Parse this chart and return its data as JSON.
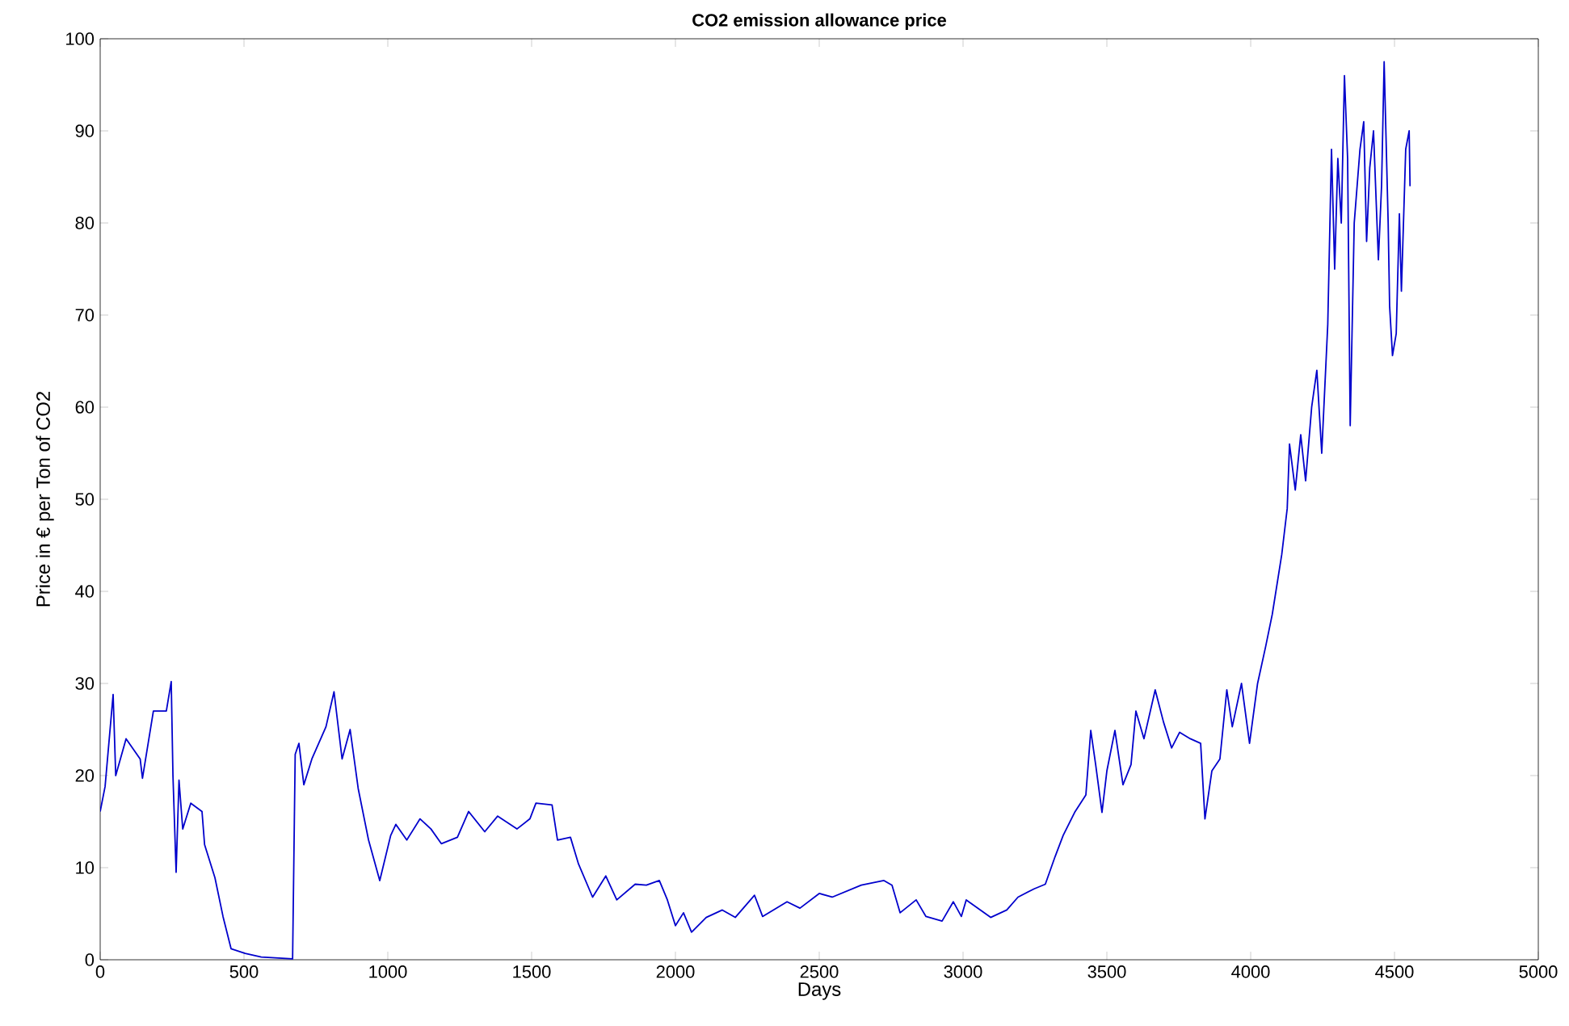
{
  "chart_data": {
    "type": "line",
    "title": "CO2 emission allowance price",
    "xlabel": "Days",
    "ylabel": "Price in € per Ton of CO2",
    "xlim": [
      0,
      5000
    ],
    "ylim": [
      0,
      100
    ],
    "xticks": [
      0,
      500,
      1000,
      1500,
      2000,
      2500,
      3000,
      3500,
      4000,
      4500,
      5000
    ],
    "yticks": [
      0,
      10,
      20,
      30,
      40,
      50,
      60,
      70,
      80,
      90,
      100
    ],
    "grid": false,
    "marker": "none",
    "line_style": "solid",
    "series": [
      {
        "color": "#0000cc",
        "x": [
          0,
          17,
          45,
          54,
          90,
          139,
          147,
          185,
          230,
          247,
          253,
          264,
          274,
          287,
          315,
          354,
          363,
          399,
          427,
          455,
          504,
          560,
          669,
          678,
          691,
          708,
          736,
          785,
          813,
          841,
          869,
          897,
          933,
          972,
          1010,
          1028,
          1066,
          1112,
          1150,
          1186,
          1242,
          1281,
          1337,
          1382,
          1449,
          1494,
          1515,
          1571,
          1590,
          1635,
          1663,
          1712,
          1758,
          1796,
          1860,
          1899,
          1944,
          1972,
          2000,
          2028,
          2056,
          2107,
          2163,
          2208,
          2275,
          2303,
          2388,
          2433,
          2500,
          2545,
          2646,
          2725,
          2753,
          2781,
          2837,
          2871,
          2927,
          2966,
          2994,
          3011,
          3096,
          3152,
          3191,
          3247,
          3286,
          3320,
          3348,
          3388,
          3427,
          3444,
          3461,
          3483,
          3500,
          3528,
          3556,
          3584,
          3601,
          3629,
          3668,
          3697,
          3725,
          3753,
          3790,
          3826,
          3841,
          3865,
          3893,
          3917,
          3936,
          3968,
          3996,
          4024,
          4052,
          4075,
          4108,
          4127,
          4135,
          4155,
          4174,
          4191,
          4212,
          4230,
          4247,
          4268,
          4281,
          4292,
          4303,
          4315,
          4326,
          4337,
          4346,
          4360,
          4380,
          4393,
          4403,
          4414,
          4427,
          4444,
          4455,
          4464,
          4478,
          4483,
          4493,
          4506,
          4517,
          4524,
          4539,
          4551,
          4554
        ],
        "values": [
          16.1,
          18.8,
          28.8,
          20,
          24,
          21.8,
          19.7,
          27,
          27,
          30.2,
          20,
          9.5,
          19.5,
          14.2,
          17,
          16.1,
          12.5,
          8.9,
          4.7,
          1.2,
          0.7,
          0.3,
          0.1,
          22.3,
          23.5,
          19,
          21.8,
          25.3,
          29.1,
          21.8,
          25,
          18.6,
          13,
          8.6,
          13.5,
          14.7,
          13,
          15.3,
          14.2,
          12.6,
          13.3,
          16.1,
          13.9,
          15.6,
          14.2,
          15.3,
          17,
          16.8,
          13,
          13.3,
          10.4,
          6.8,
          9.1,
          6.5,
          8.2,
          8.1,
          8.6,
          6.5,
          3.7,
          5.1,
          3,
          4.6,
          5.4,
          4.6,
          7,
          4.7,
          6.3,
          5.6,
          7.2,
          6.8,
          8.1,
          8.6,
          8.1,
          5.1,
          6.5,
          4.7,
          4.2,
          6.3,
          4.7,
          6.5,
          4.6,
          5.4,
          6.8,
          7.7,
          8.2,
          11.2,
          13.5,
          16,
          17.9,
          24.9,
          21.2,
          16,
          20.5,
          24.9,
          19,
          21.2,
          27,
          24,
          29.3,
          25.8,
          23,
          24.7,
          24,
          23.5,
          15.3,
          20.5,
          21.8,
          29.3,
          25.3,
          30,
          23.5,
          30,
          34,
          37.5,
          44,
          49,
          56,
          51,
          57,
          52,
          60,
          64,
          55,
          69,
          88,
          75,
          87,
          80,
          96,
          87,
          58,
          80,
          88,
          91,
          78,
          86,
          90,
          76,
          84,
          97.5,
          80,
          71,
          65.6,
          68,
          81,
          72.6,
          88,
          90,
          84
        ]
      }
    ]
  }
}
